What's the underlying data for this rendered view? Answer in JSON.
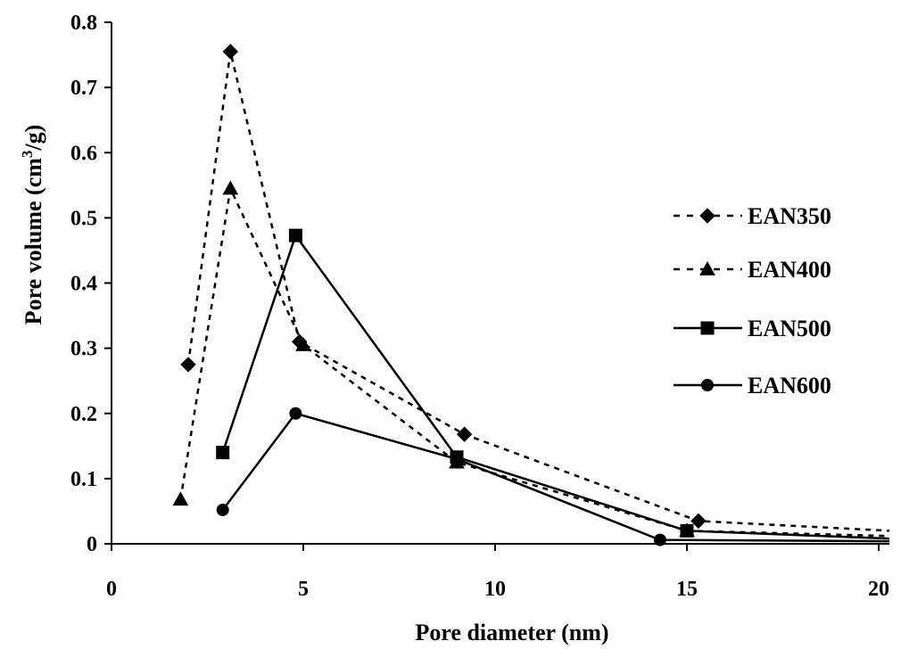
{
  "chart_data": {
    "type": "line",
    "xlabel": "Pore diameter (nm)",
    "ylabel_parts": [
      "Pore volume (cm",
      "3",
      "/g)"
    ],
    "xlim": [
      0,
      20
    ],
    "ylim": [
      0,
      0.8
    ],
    "x_ticks": [
      "0",
      "5",
      "10",
      "15",
      "20"
    ],
    "y_ticks": [
      "0",
      "0.1",
      "0.2",
      "0.3",
      "0.4",
      "0.5",
      "0.6",
      "0.7",
      "0.8"
    ],
    "grid": false,
    "legend_position": "right",
    "series": [
      {
        "name": "EAN350",
        "marker": "diamond",
        "dash": "dashed",
        "points": [
          [
            2.0,
            0.275
          ],
          [
            3.1,
            0.755
          ],
          [
            4.9,
            0.31
          ],
          [
            9.2,
            0.168
          ],
          [
            15.3,
            0.035
          ],
          [
            20.3,
            0.02
          ]
        ]
      },
      {
        "name": "EAN400",
        "marker": "triangle",
        "dash": "dashed",
        "points": [
          [
            1.8,
            0.068
          ],
          [
            3.1,
            0.545
          ],
          [
            5.0,
            0.305
          ],
          [
            9.0,
            0.125
          ],
          [
            15.0,
            0.02
          ],
          [
            20.3,
            0.012
          ]
        ]
      },
      {
        "name": "EAN500",
        "marker": "square",
        "dash": "solid",
        "points": [
          [
            2.9,
            0.14
          ],
          [
            4.8,
            0.473
          ],
          [
            9.0,
            0.133
          ],
          [
            15.0,
            0.02
          ],
          [
            20.3,
            0.008
          ]
        ]
      },
      {
        "name": "EAN600",
        "marker": "circle",
        "dash": "solid",
        "points": [
          [
            2.9,
            0.052
          ],
          [
            4.8,
            0.2
          ],
          [
            9.0,
            0.13
          ],
          [
            14.3,
            0.006
          ],
          [
            20.3,
            0.004
          ]
        ]
      }
    ]
  }
}
